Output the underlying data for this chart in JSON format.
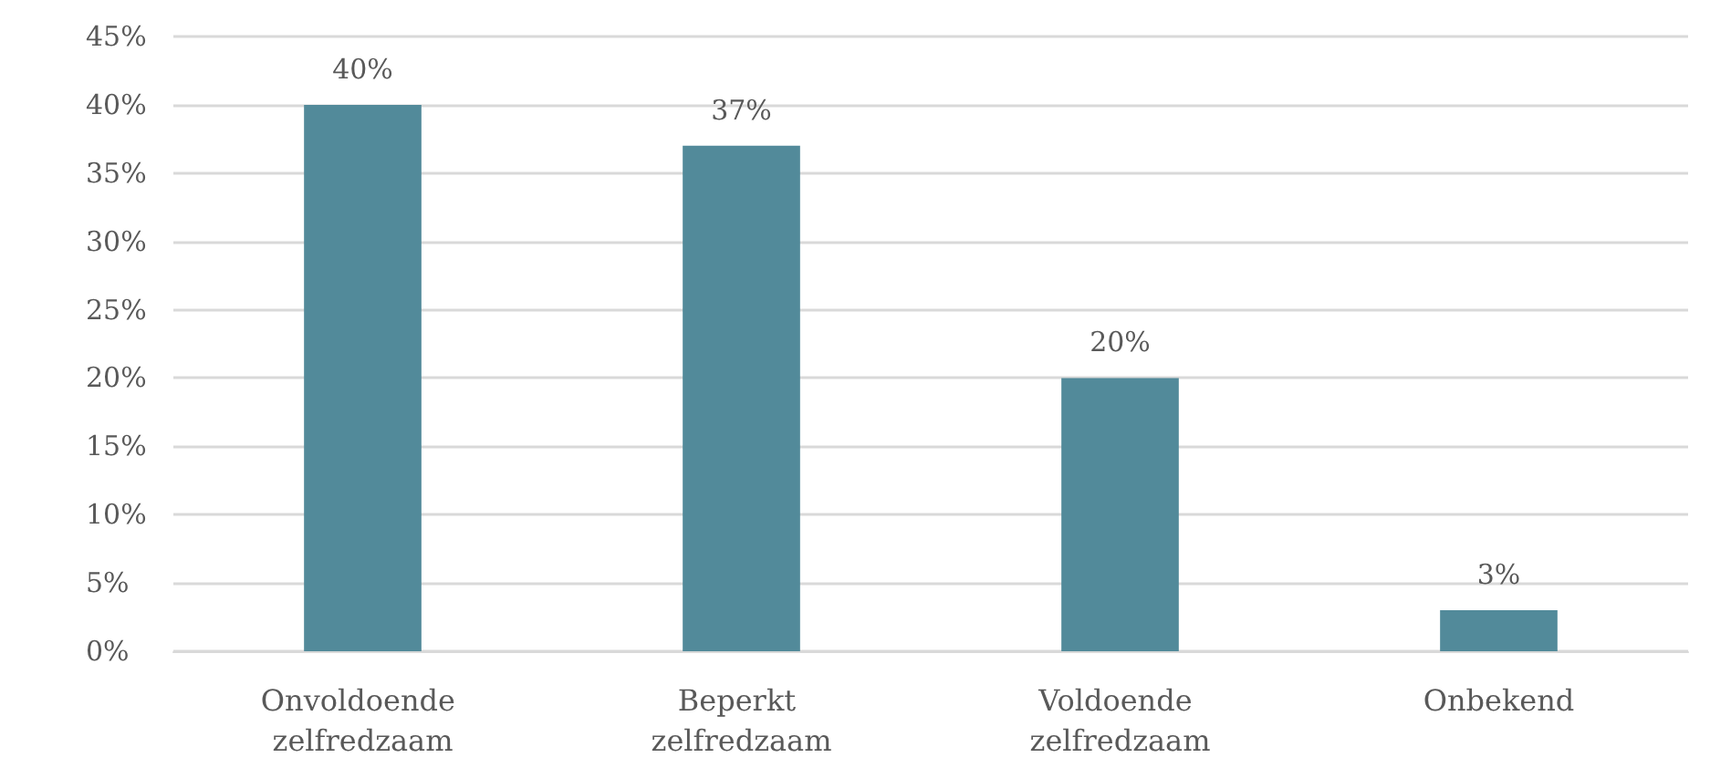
{
  "chart_data": {
    "type": "bar",
    "categories": [
      "Onvoldoende zelfredzaam",
      "Beperkt zelfredzaam",
      "Voldoende zelfredzaam",
      "Onbekend"
    ],
    "values": [
      40,
      37,
      20,
      3
    ],
    "value_labels": [
      "40%",
      "37%",
      "20%",
      "3%"
    ],
    "color": "#528a9a",
    "ylim": [
      0,
      45
    ],
    "yticks": [
      {
        "value": 0,
        "label": "0%"
      },
      {
        "value": 5,
        "label": "5%"
      },
      {
        "value": 10,
        "label": "10%"
      },
      {
        "value": 15,
        "label": "15%"
      },
      {
        "value": 20,
        "label": "20%"
      },
      {
        "value": 25,
        "label": "25%"
      },
      {
        "value": 30,
        "label": "30%"
      },
      {
        "value": 35,
        "label": "35%"
      },
      {
        "value": 40,
        "label": "40%"
      },
      {
        "value": 45,
        "label": "45%"
      }
    ],
    "grid": "y"
  }
}
